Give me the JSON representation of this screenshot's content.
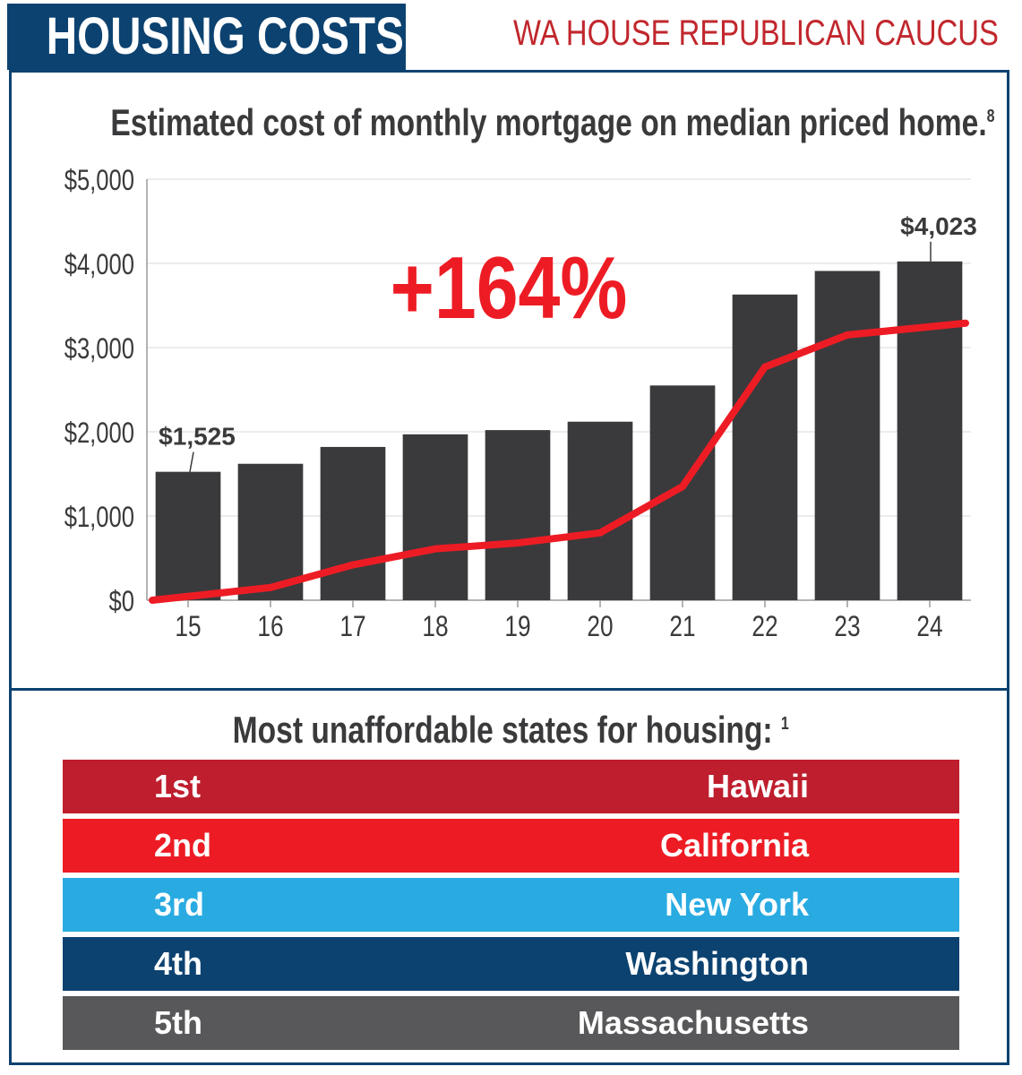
{
  "header": {
    "title": "HOUSING COSTS",
    "org": "WA HOUSE REPUBLICAN CAUCUS"
  },
  "chart_title": {
    "text": "Estimated cost of monthly mortgage on median priced home.",
    "footnote": "8"
  },
  "chart_data": {
    "type": "bar",
    "title": "Estimated cost of monthly mortgage on median priced home.",
    "categories": [
      "15",
      "16",
      "17",
      "18",
      "19",
      "20",
      "21",
      "22",
      "23",
      "24"
    ],
    "values": [
      1525,
      1620,
      1820,
      1970,
      2020,
      2120,
      2550,
      3630,
      3910,
      4023
    ],
    "line_series": {
      "values": [
        0,
        150,
        420,
        610,
        680,
        800,
        1350,
        2770,
        3150,
        3290
      ],
      "color": "#ed1c24"
    },
    "ylim": [
      0,
      5000
    ],
    "yticks": [
      "$0",
      "$1,000",
      "$2,000",
      "$3,000",
      "$4,000",
      "$5,000"
    ],
    "ytick_values": [
      0,
      1000,
      2000,
      3000,
      4000,
      5000
    ],
    "data_labels": [
      {
        "index": 0,
        "text": "$1,525"
      },
      {
        "index": 9,
        "text": "$4,023"
      }
    ],
    "annotation": "+164%",
    "grid": true,
    "bar_color": "#3a3a3c",
    "annotation_color": "#ed1c24"
  },
  "states": {
    "title": "Most unaffordable states for housing:",
    "footnote": "1",
    "rows": [
      {
        "rank": "1st",
        "state": "Hawaii",
        "color": "#be1e2d"
      },
      {
        "rank": "2nd",
        "state": "California",
        "color": "#ed1c24"
      },
      {
        "rank": "3rd",
        "state": "New York",
        "color": "#29abe2"
      },
      {
        "rank": "4th",
        "state": "Washington",
        "color": "#0c4270"
      },
      {
        "rank": "5th",
        "state": "Massachusetts",
        "color": "#58585a"
      }
    ]
  }
}
